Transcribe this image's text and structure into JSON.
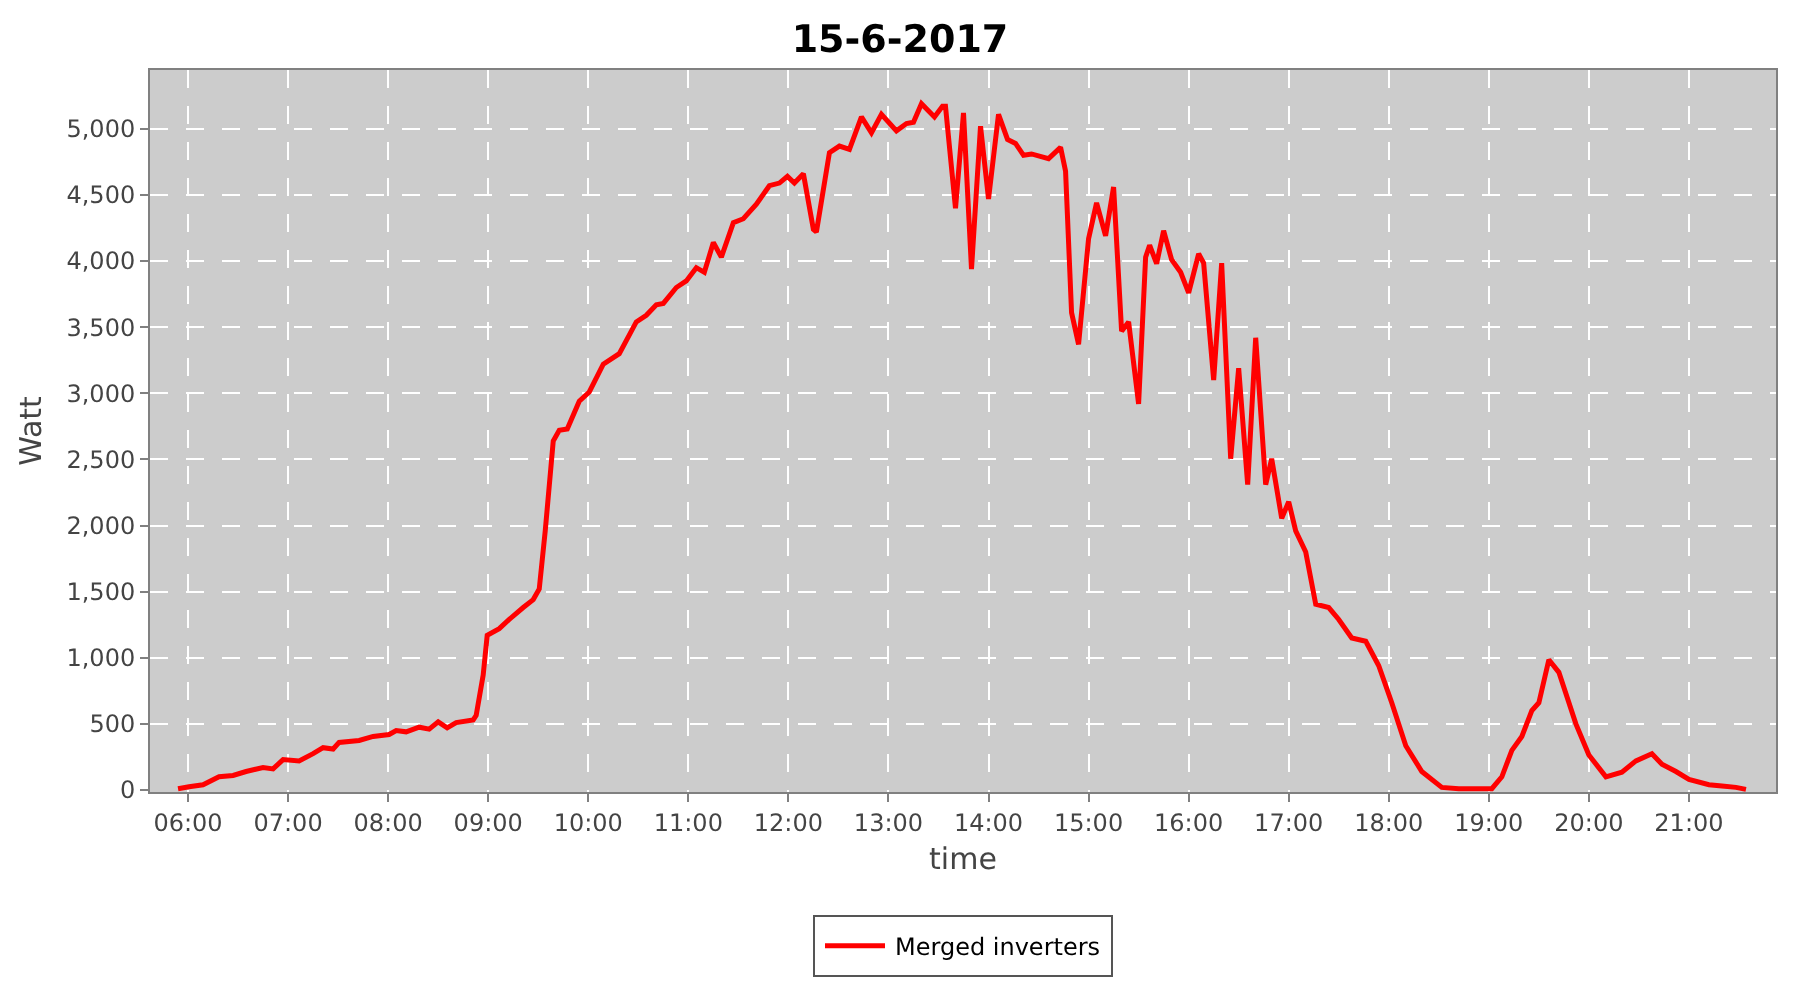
{
  "chart_data": {
    "type": "line",
    "title": "15-6-2017",
    "xlabel": "time",
    "ylabel": "Watt",
    "x": [
      5.9,
      6.01,
      6.15,
      6.31,
      6.45,
      6.58,
      6.75,
      6.85,
      6.95,
      7.11,
      7.25,
      7.35,
      7.45,
      7.51,
      7.71,
      7.85,
      8.01,
      8.08,
      8.18,
      8.31,
      8.41,
      8.5,
      8.59,
      8.68,
      8.85,
      8.88,
      8.95,
      8.99,
      9.11,
      9.21,
      9.35,
      9.45,
      9.51,
      9.57,
      9.65,
      9.71,
      9.79,
      9.91,
      10.01,
      10.15,
      10.31,
      10.48,
      10.58,
      10.68,
      10.75,
      10.88,
      10.98,
      11.08,
      11.16,
      11.25,
      11.33,
      11.45,
      11.55,
      11.68,
      11.81,
      11.91,
      11.99,
      12.06,
      12.15,
      12.25,
      12.28,
      12.41,
      12.51,
      12.61,
      12.73,
      12.83,
      12.93,
      13.08,
      13.18,
      13.25,
      13.33,
      13.46,
      13.54,
      13.57,
      13.67,
      13.75,
      13.83,
      13.92,
      14.0,
      14.1,
      14.19,
      14.27,
      14.35,
      14.43,
      14.6,
      14.72,
      14.77,
      14.83,
      14.9,
      15.0,
      15.08,
      15.17,
      15.25,
      15.33,
      15.4,
      15.5,
      15.57,
      15.61,
      15.68,
      15.75,
      15.83,
      15.92,
      16.0,
      16.1,
      16.15,
      16.25,
      16.33,
      16.42,
      16.5,
      16.59,
      16.67,
      16.77,
      16.83,
      16.93,
      17.0,
      17.07,
      17.17,
      17.27,
      17.4,
      17.5,
      17.63,
      17.77,
      17.9,
      18.03,
      18.17,
      18.33,
      18.53,
      18.7,
      19.03,
      19.13,
      19.23,
      19.33,
      19.43,
      19.5,
      19.6,
      19.7,
      19.87,
      20.0,
      20.17,
      20.33,
      20.47,
      20.63,
      20.73,
      20.87,
      21.0,
      21.2,
      21.33,
      21.47,
      21.57
    ],
    "series": [
      {
        "name": "Merged inverters",
        "color": "#ff0000",
        "values": [
          10,
          25,
          40,
          100,
          110,
          140,
          170,
          160,
          230,
          220,
          275,
          320,
          310,
          360,
          375,
          405,
          420,
          450,
          440,
          475,
          460,
          515,
          470,
          510,
          530,
          565,
          870,
          1170,
          1220,
          1290,
          1380,
          1440,
          1520,
          1960,
          2640,
          2720,
          2730,
          2940,
          3010,
          3220,
          3300,
          3540,
          3590,
          3670,
          3680,
          3800,
          3850,
          3950,
          3915,
          4140,
          4030,
          4290,
          4320,
          4430,
          4570,
          4590,
          4640,
          4590,
          4660,
          4240,
          4220,
          4820,
          4870,
          4845,
          5090,
          4970,
          5110,
          4985,
          5040,
          5050,
          5190,
          5090,
          5170,
          5170,
          4400,
          5120,
          3940,
          5020,
          4470,
          5110,
          4920,
          4890,
          4800,
          4810,
          4775,
          4860,
          4680,
          3610,
          3370,
          4170,
          4440,
          4190,
          4560,
          3470,
          3540,
          2920,
          4030,
          4120,
          3980,
          4230,
          4010,
          3915,
          3760,
          4055,
          3985,
          3100,
          3985,
          2505,
          3190,
          2310,
          3420,
          2310,
          2505,
          2055,
          2180,
          1960,
          1800,
          1405,
          1380,
          1290,
          1150,
          1125,
          940,
          660,
          335,
          140,
          20,
          10,
          10,
          100,
          300,
          405,
          600,
          660,
          985,
          890,
          500,
          265,
          100,
          135,
          220,
          275,
          195,
          140,
          80,
          40,
          30,
          20,
          5
        ]
      }
    ],
    "xlim": [
      5.62,
      21.87
    ],
    "xticks": [
      {
        "value": 6,
        "label": "06:00"
      },
      {
        "value": 7,
        "label": "07:00"
      },
      {
        "value": 8,
        "label": "08:00"
      },
      {
        "value": 9,
        "label": "09:00"
      },
      {
        "value": 10,
        "label": "10:00"
      },
      {
        "value": 11,
        "label": "11:00"
      },
      {
        "value": 12,
        "label": "12:00"
      },
      {
        "value": 13,
        "label": "13:00"
      },
      {
        "value": 14,
        "label": "14:00"
      },
      {
        "value": 15,
        "label": "15:00"
      },
      {
        "value": 16,
        "label": "16:00"
      },
      {
        "value": 17,
        "label": "17:00"
      },
      {
        "value": 18,
        "label": "18:00"
      },
      {
        "value": 19,
        "label": "19:00"
      },
      {
        "value": 20,
        "label": "20:00"
      },
      {
        "value": 21,
        "label": "21:00"
      }
    ],
    "ylim": [
      -15,
      5445
    ],
    "yticks": [
      0,
      500,
      {
        "value": 1000,
        "label": "1,000"
      },
      {
        "value": 1500,
        "label": "1,500"
      },
      {
        "value": 2000,
        "label": "2,000"
      },
      {
        "value": 2500,
        "label": "2,500"
      },
      {
        "value": 3000,
        "label": "3,000"
      },
      {
        "value": 3500,
        "label": "3,500"
      },
      {
        "value": 4000,
        "label": "4,000"
      },
      {
        "value": 4500,
        "label": "4,500"
      },
      {
        "value": 5000,
        "label": "5,000"
      }
    ],
    "grid": true,
    "legend": "bottom",
    "marker": "none",
    "line_style": "solid"
  }
}
